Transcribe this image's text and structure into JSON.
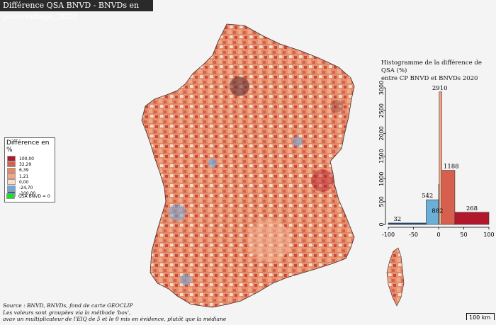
{
  "title": "Différence QSA BNVD - BNVDs en pourcentage, 2020",
  "legend": {
    "title": "Différence en %",
    "classes": [
      {
        "label": "100,00",
        "color": "#b2182b"
      },
      {
        "label": "32,29",
        "color": "#d6604d"
      },
      {
        "label": "6,39",
        "color": "#e48966"
      },
      {
        "label": "1,21",
        "color": "#f4a582"
      },
      {
        "label": "0,00",
        "color": "#fddbc7"
      },
      {
        "label": "-24,70",
        "color": "#6fa8dc"
      },
      {
        "label": "-100,00",
        "color": "#2166ac"
      }
    ],
    "zero_label": "QSA BNVD = 0",
    "zero_color": "#22dd22"
  },
  "histogram": {
    "title_line1": "Histogramme de la différence de QSA (%)",
    "title_line2": "entre CP BNVD et BNVDs 2020"
  },
  "chart_data": {
    "type": "bar",
    "xlim": [
      -100,
      100
    ],
    "ylim": [
      0,
      3000
    ],
    "x_ticks": [
      "-100",
      "-50",
      "0",
      "50",
      "100"
    ],
    "y_ticks": [
      "0",
      "500",
      "1000",
      "1500",
      "2000",
      "2500",
      "3000"
    ],
    "bins": [
      {
        "x0": -100,
        "x1": -24.7,
        "value": 32,
        "label": "32",
        "color": "#1f4e86"
      },
      {
        "x0": -24.7,
        "x1": 0,
        "value": 542,
        "label": "542",
        "color": "#6baed6"
      },
      {
        "x0": 0,
        "x1": 1.21,
        "value": 882,
        "label": "882",
        "color": "#fddbc7"
      },
      {
        "x0": 1.21,
        "x1": 6.39,
        "value": 2910,
        "label": "2910",
        "color": "#f4a582"
      },
      {
        "x0": 6.39,
        "x1": 32.29,
        "value": 1188,
        "label": "1188",
        "color": "#d6604d"
      },
      {
        "x0": 32.29,
        "x1": 100,
        "value": 268,
        "label": "268",
        "color": "#b2182b"
      }
    ]
  },
  "source": {
    "line1": "Source : BNVD, BNVDs, fond de carte GEOCLIP",
    "line2": "Les valeurs sont groupées via la méthode 'box',",
    "line3": "avav un multiplicateur de l'EIQ de 5 et le 0 mis en évidence, plutôt que la médiane"
  },
  "scale": {
    "label": "100 km"
  }
}
